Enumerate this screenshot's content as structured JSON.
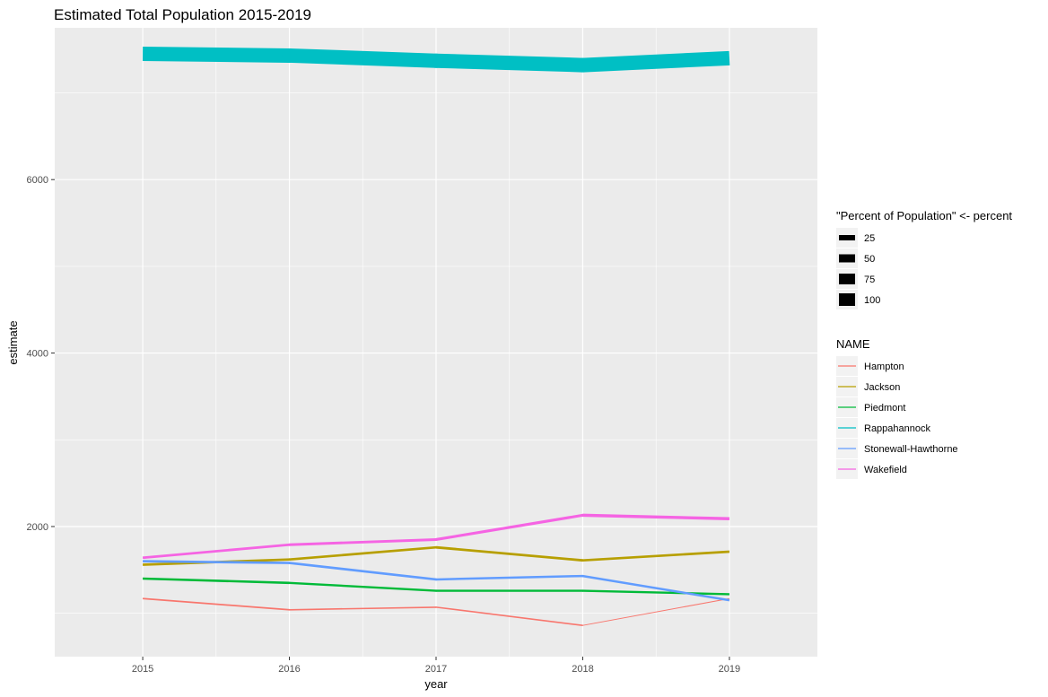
{
  "chart_data": {
    "type": "line",
    "title": "Estimated Total Population 2015-2019",
    "xlabel": "year",
    "ylabel": "estimate",
    "x": [
      2015,
      2016,
      2017,
      2018,
      2019
    ],
    "xlim": [
      2014.4,
      2019.6
    ],
    "ylim": [
      500,
      7750
    ],
    "yticks": [
      2000,
      4000,
      6000
    ],
    "grid": true,
    "legend_position": "right",
    "size_legend": {
      "title": "\"Percent of Population\" <- percent",
      "entries": [
        {
          "label": "25",
          "value": 25
        },
        {
          "label": "50",
          "value": 50
        },
        {
          "label": "75",
          "value": 75
        },
        {
          "label": "100",
          "value": 100
        }
      ]
    },
    "color_legend": {
      "title": "NAME"
    },
    "series": [
      {
        "name": "Hampton",
        "color": "#F8766D",
        "values": [
          1170,
          1040,
          1070,
          860,
          1170
        ],
        "percent": [
          6,
          5,
          5,
          1,
          6
        ]
      },
      {
        "name": "Jackson",
        "color": "#B79F00",
        "values": [
          1560,
          1620,
          1760,
          1610,
          1710
        ],
        "percent": [
          12,
          12,
          13,
          12,
          12
        ]
      },
      {
        "name": "Piedmont",
        "color": "#00BA38",
        "values": [
          1400,
          1350,
          1260,
          1260,
          1220
        ],
        "percent": [
          11,
          10,
          10,
          10,
          10
        ]
      },
      {
        "name": "Rappahannock",
        "color": "#00BFC4",
        "values": [
          7450,
          7430,
          7370,
          7320,
          7400
        ],
        "percent": [
          100,
          100,
          100,
          100,
          100
        ]
      },
      {
        "name": "Stonewall-Hawthorne",
        "color": "#619CFF",
        "values": [
          1600,
          1580,
          1390,
          1430,
          1150
        ],
        "percent": [
          12,
          12,
          11,
          11,
          9
        ]
      },
      {
        "name": "Wakefield",
        "color": "#F564E3",
        "values": [
          1640,
          1790,
          1850,
          2130,
          2090
        ],
        "percent": [
          13,
          14,
          15,
          17,
          17
        ]
      }
    ]
  }
}
